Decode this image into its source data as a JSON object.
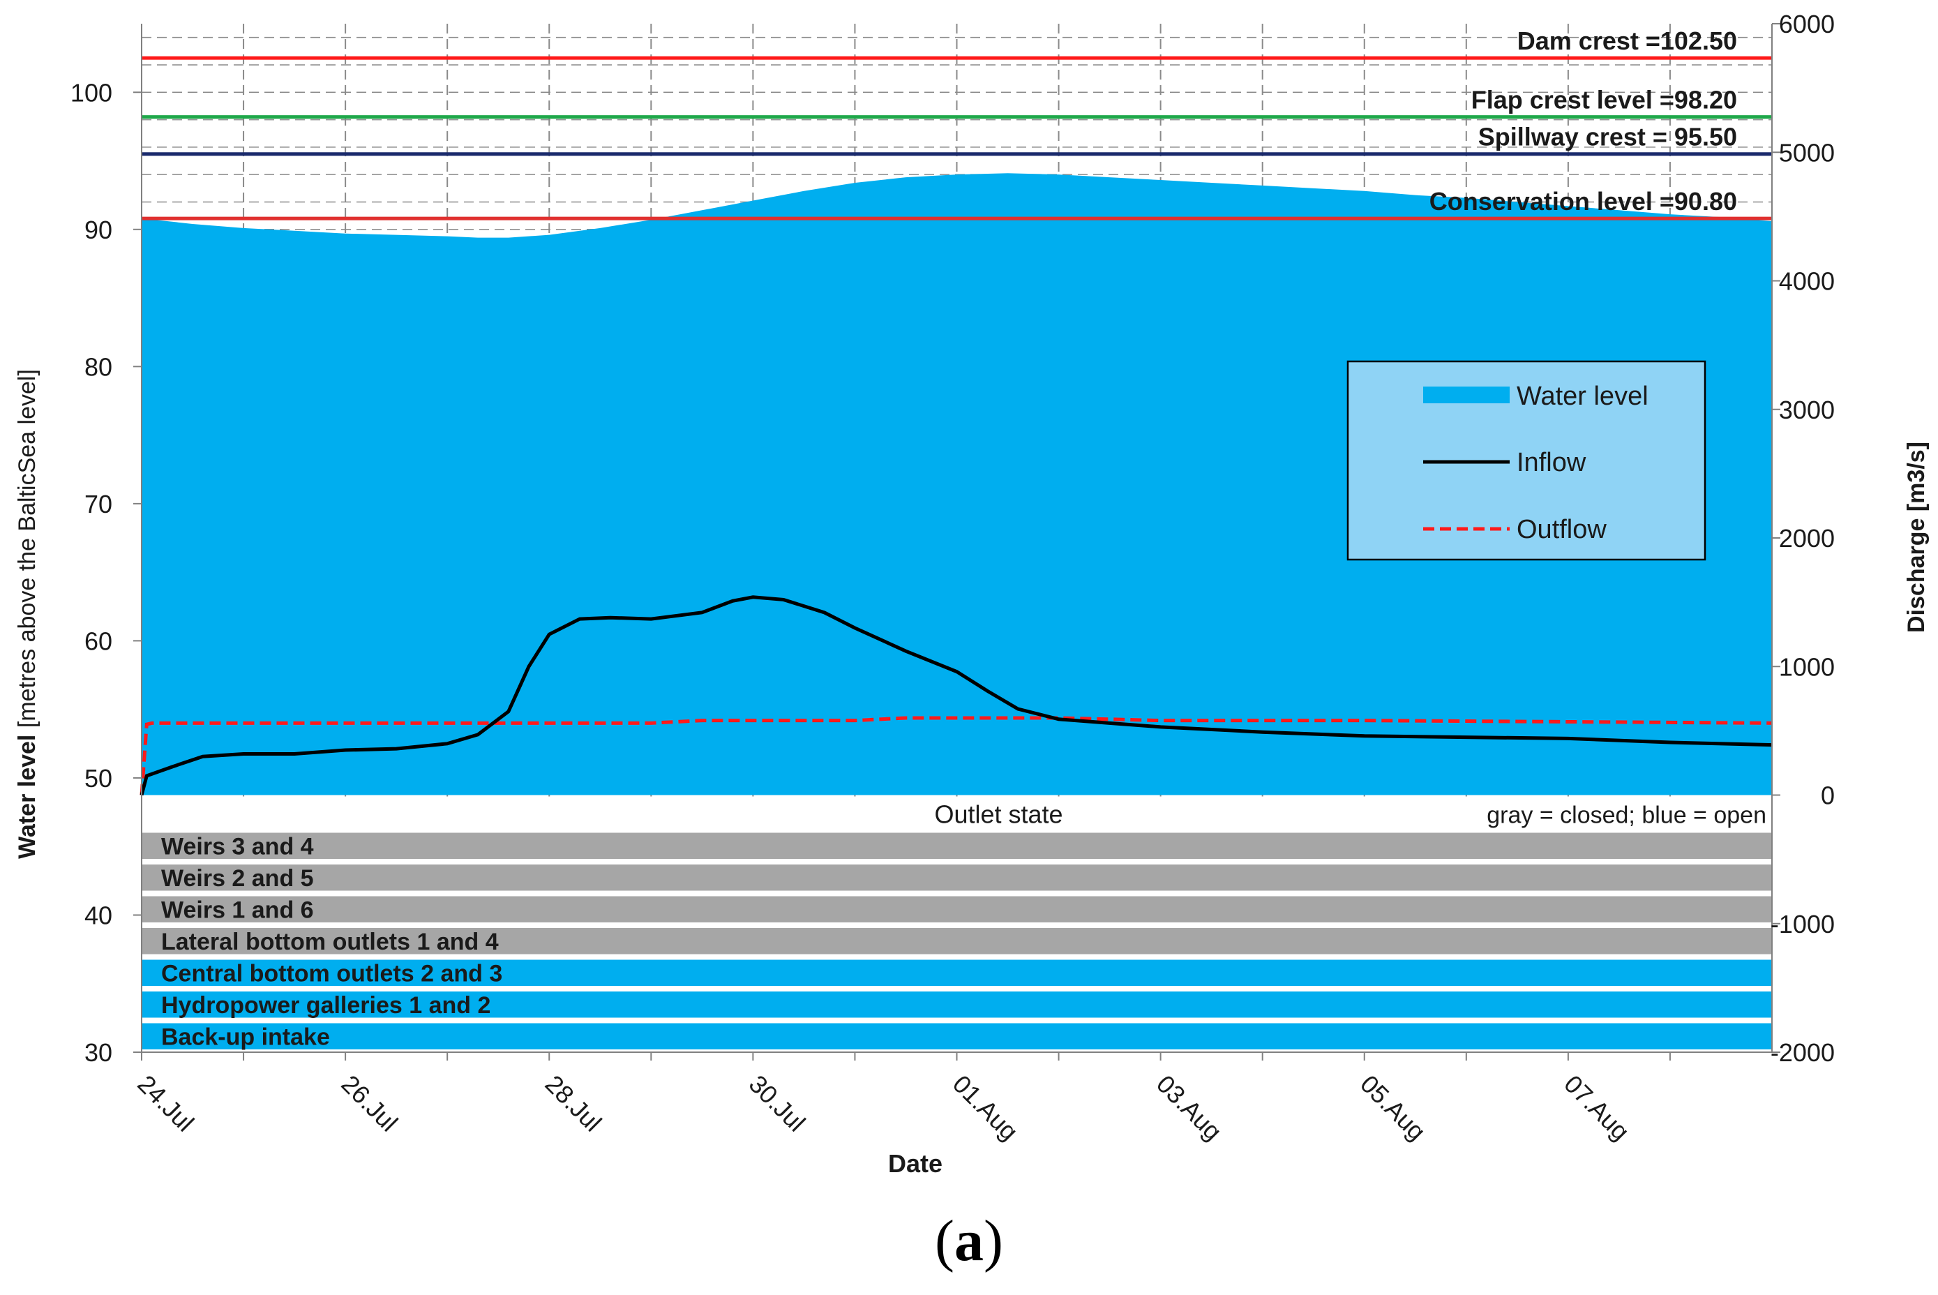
{
  "caption": {
    "open": "(",
    "letter": "a",
    "close": ")"
  },
  "chart_data": {
    "type": "area",
    "title": "",
    "xlabel": "Date",
    "ylabel_left_bold": "Water level",
    "ylabel_left_rest": " [metres above the BalticSea level]",
    "ylabel_right": "Discharge [m3/s]",
    "x_range_days": [
      0,
      16
    ],
    "x_ticks": [
      {
        "day": 0,
        "label": "24.Jul"
      },
      {
        "day": 2,
        "label": "26.Jul"
      },
      {
        "day": 4,
        "label": "28.Jul"
      },
      {
        "day": 6,
        "label": "30.Jul"
      },
      {
        "day": 8,
        "label": "01.Aug"
      },
      {
        "day": 10,
        "label": "03.Aug"
      },
      {
        "day": 12,
        "label": "05.Aug"
      },
      {
        "day": 14,
        "label": "07.Aug"
      }
    ],
    "y_left_range": [
      30,
      105
    ],
    "y_left_ticks": [
      30,
      40,
      50,
      60,
      70,
      80,
      90,
      100
    ],
    "y_right_range": [
      -2000,
      6000
    ],
    "y_right_ticks": [
      -2000,
      -1000,
      0,
      1000,
      2000,
      3000,
      4000,
      5000,
      6000
    ],
    "reference_lines": [
      {
        "label": "Dam crest =102.50",
        "value": 102.5,
        "color": "#ff1a1a"
      },
      {
        "label": "Flap crest level =98.20",
        "value": 98.2,
        "color": "#1fa84a"
      },
      {
        "label": "Spillway crest = 95.50",
        "value": 95.5,
        "color": "#1a2a6c"
      },
      {
        "label": "Conservation level =90.80",
        "value": 90.8,
        "color": "#e0302f"
      }
    ],
    "water_level": {
      "name": "Water level",
      "axis": "left",
      "baseline_discharge": 0,
      "points": [
        [
          0,
          90.8
        ],
        [
          0.5,
          90.4
        ],
        [
          1,
          90.1
        ],
        [
          1.5,
          89.9
        ],
        [
          2,
          89.7
        ],
        [
          2.5,
          89.6
        ],
        [
          3,
          89.5
        ],
        [
          3.3,
          89.4
        ],
        [
          3.6,
          89.4
        ],
        [
          4,
          89.6
        ],
        [
          4.5,
          90.1
        ],
        [
          5,
          90.7
        ],
        [
          5.5,
          91.4
        ],
        [
          6,
          92.1
        ],
        [
          6.5,
          92.8
        ],
        [
          7,
          93.4
        ],
        [
          7.5,
          93.8
        ],
        [
          8,
          94.0
        ],
        [
          8.5,
          94.1
        ],
        [
          9,
          94.0
        ],
        [
          9.5,
          93.8
        ],
        [
          10,
          93.6
        ],
        [
          10.5,
          93.4
        ],
        [
          11,
          93.2
        ],
        [
          11.5,
          93.0
        ],
        [
          12,
          92.8
        ],
        [
          12.5,
          92.5
        ],
        [
          13,
          92.3
        ],
        [
          13.5,
          92.0
        ],
        [
          14,
          91.7
        ],
        [
          14.5,
          91.4
        ],
        [
          15,
          91.1
        ],
        [
          15.5,
          90.9
        ],
        [
          16,
          90.6
        ]
      ]
    },
    "inflow": {
      "name": "Inflow",
      "axis": "right",
      "color": "#000000",
      "points": [
        [
          0,
          0
        ],
        [
          0.05,
          150
        ],
        [
          0.3,
          220
        ],
        [
          0.6,
          300
        ],
        [
          1,
          320
        ],
        [
          1.5,
          320
        ],
        [
          2,
          350
        ],
        [
          2.5,
          360
        ],
        [
          3,
          400
        ],
        [
          3.3,
          470
        ],
        [
          3.6,
          650
        ],
        [
          3.8,
          1000
        ],
        [
          4,
          1250
        ],
        [
          4.3,
          1370
        ],
        [
          4.6,
          1380
        ],
        [
          5,
          1370
        ],
        [
          5.5,
          1420
        ],
        [
          5.8,
          1510
        ],
        [
          6,
          1540
        ],
        [
          6.3,
          1520
        ],
        [
          6.7,
          1420
        ],
        [
          7,
          1300
        ],
        [
          7.5,
          1120
        ],
        [
          8,
          960
        ],
        [
          8.3,
          810
        ],
        [
          8.6,
          670
        ],
        [
          9,
          590
        ],
        [
          9.5,
          560
        ],
        [
          10,
          530
        ],
        [
          10.5,
          510
        ],
        [
          11,
          490
        ],
        [
          12,
          460
        ],
        [
          13,
          450
        ],
        [
          14,
          440
        ],
        [
          15,
          410
        ],
        [
          16,
          390
        ]
      ]
    },
    "outflow": {
      "name": "Outflow",
      "axis": "right",
      "color": "#ff1a1a",
      "points": [
        [
          0,
          0
        ],
        [
          0.05,
          550
        ],
        [
          0.1,
          560
        ],
        [
          3,
          560
        ],
        [
          4,
          560
        ],
        [
          5,
          560
        ],
        [
          5.5,
          580
        ],
        [
          6,
          580
        ],
        [
          7,
          580
        ],
        [
          7.5,
          600
        ],
        [
          8,
          600
        ],
        [
          9,
          600
        ],
        [
          10,
          580
        ],
        [
          12,
          580
        ],
        [
          14,
          570
        ],
        [
          16,
          560
        ]
      ]
    },
    "legend": {
      "position": "right-middle",
      "entries": [
        "Water level",
        "Inflow",
        "Outflow"
      ]
    },
    "outlet_state": {
      "title": "Outlet state",
      "key": "gray = closed; blue = open",
      "rows": [
        {
          "label": "Weirs 3 and 4",
          "state": "closed"
        },
        {
          "label": "Weirs 2 and 5",
          "state": "closed"
        },
        {
          "label": "Weirs 1 and 6",
          "state": "closed"
        },
        {
          "label": "Lateral bottom outlets 1 and 4",
          "state": "closed"
        },
        {
          "label": "Central bottom outlets 2 and 3",
          "state": "open"
        },
        {
          "label": "Hydropower galleries 1 and 2",
          "state": "open"
        },
        {
          "label": "Back-up intake",
          "state": "open"
        }
      ]
    },
    "colors": {
      "water": "#00aeef",
      "legend_bg": "#8fd3f5",
      "closed": "#a6a6a6",
      "open": "#00aeef",
      "grid": "#8a8a8a"
    }
  }
}
